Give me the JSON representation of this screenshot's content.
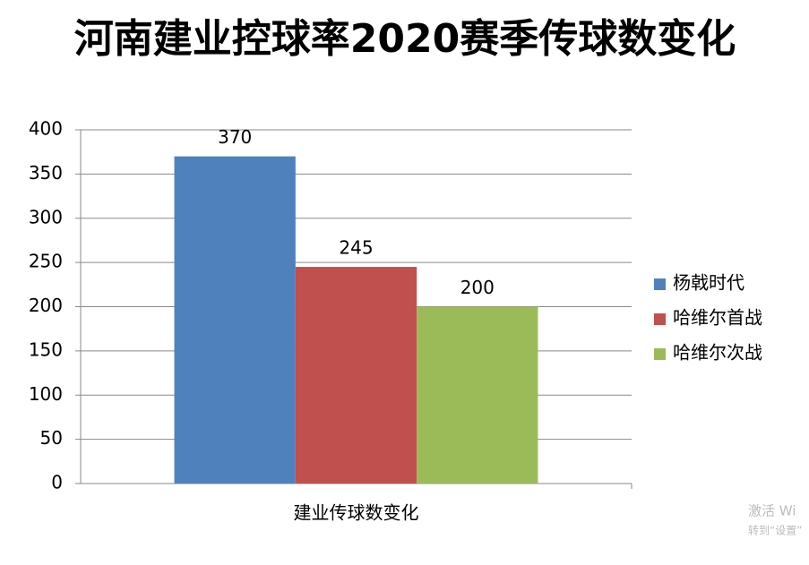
{
  "chart_data": {
    "type": "bar",
    "title": "河南建业控球率2020赛季传球数变化",
    "categories": [
      "建业传球数变化"
    ],
    "series": [
      {
        "name": "杨戟时代",
        "color": "#4f81bd",
        "values": [
          370
        ]
      },
      {
        "name": "哈维尔首战",
        "color": "#c0504d",
        "values": [
          245
        ]
      },
      {
        "name": "哈维尔次战",
        "color": "#9bbb59",
        "values": [
          200
        ]
      }
    ],
    "ylim": [
      0,
      400
    ],
    "yticks": [
      0,
      50,
      100,
      150,
      200,
      250,
      300,
      350,
      400
    ],
    "grid": true,
    "legend": "right"
  },
  "watermark": {
    "line1": "激活 Wi",
    "line2": "转到“设置”"
  }
}
